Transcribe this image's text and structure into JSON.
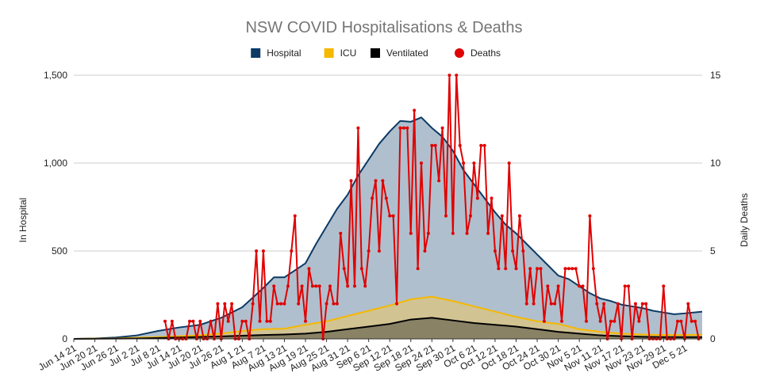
{
  "chart_data": {
    "type": "area",
    "title": "NSW COVID Hospitalisations & Deaths",
    "ylabel": "In Hospital",
    "y2label": "Daily Deaths",
    "ylim": [
      0,
      1500
    ],
    "y2lim": [
      0,
      15
    ],
    "yticks": [
      "0",
      "500",
      "1,000",
      "1,500"
    ],
    "y2ticks": [
      "0",
      "5",
      "10",
      "15"
    ],
    "xlim": [
      "2021-06-14",
      "2021-12-10"
    ],
    "xticks": [
      "Jun 14 21",
      "Jun 20 21",
      "Jun 26 21",
      "Jul 2 21",
      "Jul 8 21",
      "Jul 14 21",
      "Jul 20 21",
      "Jul 26 21",
      "Aug 1 21",
      "Aug 7 21",
      "Aug 13 21",
      "Aug 19 21",
      "Aug 25 21",
      "Aug 31 21",
      "Sep 6 21",
      "Sep 12 21",
      "Sep 18 21",
      "Sep 24 21",
      "Sep 30 21",
      "Oct 6 21",
      "Oct 12 21",
      "Oct 18 21",
      "Oct 24 21",
      "Oct 30 21",
      "Nov 5 21",
      "Nov 11 21",
      "Nov 17 21",
      "Nov 23 21",
      "Nov 29 21",
      "Dec 5 21"
    ],
    "legend_position": "top",
    "grid": true,
    "series": [
      {
        "name": "Hospital",
        "axis": "left",
        "kind": "area",
        "color": "#0b3a66",
        "fill": "#b0bfcd",
        "points": [
          [
            "2021-06-14",
            0
          ],
          [
            "2021-06-20",
            2
          ],
          [
            "2021-06-26",
            8
          ],
          [
            "2021-07-02",
            20
          ],
          [
            "2021-07-08",
            45
          ],
          [
            "2021-07-14",
            65
          ],
          [
            "2021-07-20",
            80
          ],
          [
            "2021-07-26",
            120
          ],
          [
            "2021-08-01",
            180
          ],
          [
            "2021-08-07",
            290
          ],
          [
            "2021-08-10",
            350
          ],
          [
            "2021-08-13",
            350
          ],
          [
            "2021-08-16",
            390
          ],
          [
            "2021-08-19",
            430
          ],
          [
            "2021-08-22",
            540
          ],
          [
            "2021-08-25",
            640
          ],
          [
            "2021-08-28",
            740
          ],
          [
            "2021-08-31",
            820
          ],
          [
            "2021-09-03",
            930
          ],
          [
            "2021-09-06",
            1020
          ],
          [
            "2021-09-09",
            1110
          ],
          [
            "2021-09-12",
            1180
          ],
          [
            "2021-09-15",
            1240
          ],
          [
            "2021-09-18",
            1235
          ],
          [
            "2021-09-21",
            1260
          ],
          [
            "2021-09-24",
            1200
          ],
          [
            "2021-09-27",
            1150
          ],
          [
            "2021-09-30",
            1070
          ],
          [
            "2021-10-03",
            960
          ],
          [
            "2021-10-06",
            880
          ],
          [
            "2021-10-09",
            800
          ],
          [
            "2021-10-12",
            720
          ],
          [
            "2021-10-15",
            650
          ],
          [
            "2021-10-18",
            600
          ],
          [
            "2021-10-21",
            540
          ],
          [
            "2021-10-24",
            480
          ],
          [
            "2021-10-27",
            420
          ],
          [
            "2021-10-30",
            360
          ],
          [
            "2021-11-02",
            340
          ],
          [
            "2021-11-05",
            300
          ],
          [
            "2021-11-08",
            260
          ],
          [
            "2021-11-11",
            230
          ],
          [
            "2021-11-14",
            215
          ],
          [
            "2021-11-17",
            195
          ],
          [
            "2021-11-20",
            185
          ],
          [
            "2021-11-23",
            175
          ],
          [
            "2021-11-26",
            160
          ],
          [
            "2021-11-29",
            150
          ],
          [
            "2021-12-02",
            140
          ],
          [
            "2021-12-05",
            145
          ],
          [
            "2021-12-10",
            155
          ]
        ]
      },
      {
        "name": "ICU",
        "axis": "left",
        "kind": "area",
        "color": "#f5b800",
        "fill": "#d2c393",
        "points": [
          [
            "2021-06-14",
            0
          ],
          [
            "2021-06-26",
            3
          ],
          [
            "2021-07-08",
            10
          ],
          [
            "2021-07-20",
            20
          ],
          [
            "2021-07-26",
            30
          ],
          [
            "2021-08-01",
            45
          ],
          [
            "2021-08-07",
            55
          ],
          [
            "2021-08-13",
            58
          ],
          [
            "2021-08-19",
            80
          ],
          [
            "2021-08-25",
            100
          ],
          [
            "2021-08-31",
            130
          ],
          [
            "2021-09-06",
            160
          ],
          [
            "2021-09-12",
            190
          ],
          [
            "2021-09-18",
            225
          ],
          [
            "2021-09-24",
            240
          ],
          [
            "2021-09-30",
            215
          ],
          [
            "2021-10-06",
            185
          ],
          [
            "2021-10-12",
            155
          ],
          [
            "2021-10-18",
            125
          ],
          [
            "2021-10-24",
            100
          ],
          [
            "2021-10-30",
            85
          ],
          [
            "2021-11-05",
            55
          ],
          [
            "2021-11-11",
            40
          ],
          [
            "2021-11-17",
            30
          ],
          [
            "2021-11-23",
            25
          ],
          [
            "2021-11-29",
            22
          ],
          [
            "2021-12-05",
            22
          ],
          [
            "2021-12-10",
            24
          ]
        ]
      },
      {
        "name": "Ventilated",
        "axis": "left",
        "kind": "area",
        "color": "#000000",
        "fill": "#8a8265",
        "points": [
          [
            "2021-06-14",
            0
          ],
          [
            "2021-07-02",
            2
          ],
          [
            "2021-07-14",
            8
          ],
          [
            "2021-07-26",
            14
          ],
          [
            "2021-08-07",
            22
          ],
          [
            "2021-08-13",
            25
          ],
          [
            "2021-08-19",
            30
          ],
          [
            "2021-08-25",
            40
          ],
          [
            "2021-08-31",
            55
          ],
          [
            "2021-09-06",
            70
          ],
          [
            "2021-09-12",
            85
          ],
          [
            "2021-09-18",
            110
          ],
          [
            "2021-09-24",
            120
          ],
          [
            "2021-09-30",
            105
          ],
          [
            "2021-10-06",
            90
          ],
          [
            "2021-10-12",
            80
          ],
          [
            "2021-10-18",
            70
          ],
          [
            "2021-10-24",
            55
          ],
          [
            "2021-10-30",
            40
          ],
          [
            "2021-11-05",
            30
          ],
          [
            "2021-11-11",
            20
          ],
          [
            "2021-11-17",
            15
          ],
          [
            "2021-11-23",
            12
          ],
          [
            "2021-11-29",
            10
          ],
          [
            "2021-12-05",
            10
          ],
          [
            "2021-12-10",
            10
          ]
        ]
      },
      {
        "name": "Deaths",
        "axis": "right",
        "kind": "line",
        "color": "#e00000",
        "points": [
          [
            "2021-07-10",
            1
          ],
          [
            "2021-07-11",
            0
          ],
          [
            "2021-07-12",
            1
          ],
          [
            "2021-07-13",
            0
          ],
          [
            "2021-07-14",
            0
          ],
          [
            "2021-07-15",
            0
          ],
          [
            "2021-07-16",
            0
          ],
          [
            "2021-07-17",
            1
          ],
          [
            "2021-07-18",
            1
          ],
          [
            "2021-07-19",
            0
          ],
          [
            "2021-07-20",
            1
          ],
          [
            "2021-07-21",
            0
          ],
          [
            "2021-07-22",
            0
          ],
          [
            "2021-07-23",
            1
          ],
          [
            "2021-07-24",
            0
          ],
          [
            "2021-07-25",
            2
          ],
          [
            "2021-07-26",
            0
          ],
          [
            "2021-07-27",
            2
          ],
          [
            "2021-07-28",
            1
          ],
          [
            "2021-07-29",
            2
          ],
          [
            "2021-07-30",
            0
          ],
          [
            "2021-07-31",
            0
          ],
          [
            "2021-08-01",
            1
          ],
          [
            "2021-08-02",
            1
          ],
          [
            "2021-08-03",
            0
          ],
          [
            "2021-08-04",
            2
          ],
          [
            "2021-08-05",
            5
          ],
          [
            "2021-08-06",
            1
          ],
          [
            "2021-08-07",
            5
          ],
          [
            "2021-08-08",
            1
          ],
          [
            "2021-08-09",
            1
          ],
          [
            "2021-08-10",
            3
          ],
          [
            "2021-08-11",
            2
          ],
          [
            "2021-08-12",
            2
          ],
          [
            "2021-08-13",
            2
          ],
          [
            "2021-08-14",
            3
          ],
          [
            "2021-08-15",
            5
          ],
          [
            "2021-08-16",
            7
          ],
          [
            "2021-08-17",
            2
          ],
          [
            "2021-08-18",
            3
          ],
          [
            "2021-08-19",
            1
          ],
          [
            "2021-08-20",
            4
          ],
          [
            "2021-08-21",
            3
          ],
          [
            "2021-08-22",
            3
          ],
          [
            "2021-08-23",
            3
          ],
          [
            "2021-08-24",
            0
          ],
          [
            "2021-08-25",
            2
          ],
          [
            "2021-08-26",
            3
          ],
          [
            "2021-08-27",
            2
          ],
          [
            "2021-08-28",
            2
          ],
          [
            "2021-08-29",
            6
          ],
          [
            "2021-08-30",
            4
          ],
          [
            "2021-08-31",
            3
          ],
          [
            "2021-09-01",
            9
          ],
          [
            "2021-09-02",
            3
          ],
          [
            "2021-09-03",
            12
          ],
          [
            "2021-09-04",
            4
          ],
          [
            "2021-09-05",
            3
          ],
          [
            "2021-09-06",
            5
          ],
          [
            "2021-09-07",
            8
          ],
          [
            "2021-09-08",
            9
          ],
          [
            "2021-09-09",
            5
          ],
          [
            "2021-09-10",
            9
          ],
          [
            "2021-09-11",
            8
          ],
          [
            "2021-09-12",
            7
          ],
          [
            "2021-09-13",
            7
          ],
          [
            "2021-09-14",
            2
          ],
          [
            "2021-09-15",
            12
          ],
          [
            "2021-09-16",
            12
          ],
          [
            "2021-09-17",
            12
          ],
          [
            "2021-09-18",
            6
          ],
          [
            "2021-09-19",
            13
          ],
          [
            "2021-09-20",
            4
          ],
          [
            "2021-09-21",
            10
          ],
          [
            "2021-09-22",
            5
          ],
          [
            "2021-09-23",
            6
          ],
          [
            "2021-09-24",
            11
          ],
          [
            "2021-09-25",
            11
          ],
          [
            "2021-09-26",
            9
          ],
          [
            "2021-09-27",
            12
          ],
          [
            "2021-09-28",
            7
          ],
          [
            "2021-09-29",
            15
          ],
          [
            "2021-09-30",
            6
          ],
          [
            "2021-10-01",
            15
          ],
          [
            "2021-10-02",
            11
          ],
          [
            "2021-10-03",
            10
          ],
          [
            "2021-10-04",
            6
          ],
          [
            "2021-10-05",
            7
          ],
          [
            "2021-10-06",
            10
          ],
          [
            "2021-10-07",
            8
          ],
          [
            "2021-10-08",
            11
          ],
          [
            "2021-10-09",
            11
          ],
          [
            "2021-10-10",
            6
          ],
          [
            "2021-10-11",
            8
          ],
          [
            "2021-10-12",
            5
          ],
          [
            "2021-10-13",
            4
          ],
          [
            "2021-10-14",
            7
          ],
          [
            "2021-10-15",
            4
          ],
          [
            "2021-10-16",
            10
          ],
          [
            "2021-10-17",
            5
          ],
          [
            "2021-10-18",
            4
          ],
          [
            "2021-10-19",
            7
          ],
          [
            "2021-10-20",
            5
          ],
          [
            "2021-10-21",
            2
          ],
          [
            "2021-10-22",
            4
          ],
          [
            "2021-10-23",
            2
          ],
          [
            "2021-10-24",
            4
          ],
          [
            "2021-10-25",
            4
          ],
          [
            "2021-10-26",
            1
          ],
          [
            "2021-10-27",
            3
          ],
          [
            "2021-10-28",
            2
          ],
          [
            "2021-10-29",
            2
          ],
          [
            "2021-10-30",
            3
          ],
          [
            "2021-10-31",
            1
          ],
          [
            "2021-11-01",
            4
          ],
          [
            "2021-11-02",
            4
          ],
          [
            "2021-11-03",
            4
          ],
          [
            "2021-11-04",
            4
          ],
          [
            "2021-11-05",
            3
          ],
          [
            "2021-11-06",
            3
          ],
          [
            "2021-11-07",
            1
          ],
          [
            "2021-11-08",
            7
          ],
          [
            "2021-11-09",
            4
          ],
          [
            "2021-11-10",
            2
          ],
          [
            "2021-11-11",
            1
          ],
          [
            "2021-11-12",
            2
          ],
          [
            "2021-11-13",
            0
          ],
          [
            "2021-11-14",
            1
          ],
          [
            "2021-11-15",
            1
          ],
          [
            "2021-11-16",
            2
          ],
          [
            "2021-11-17",
            0
          ],
          [
            "2021-11-18",
            3
          ],
          [
            "2021-11-19",
            3
          ],
          [
            "2021-11-20",
            0
          ],
          [
            "2021-11-21",
            2
          ],
          [
            "2021-11-22",
            1
          ],
          [
            "2021-11-23",
            2
          ],
          [
            "2021-11-24",
            2
          ],
          [
            "2021-11-25",
            0
          ],
          [
            "2021-11-26",
            0
          ],
          [
            "2021-11-27",
            0
          ],
          [
            "2021-11-28",
            0
          ],
          [
            "2021-11-29",
            3
          ],
          [
            "2021-11-30",
            0
          ],
          [
            "2021-12-01",
            0
          ],
          [
            "2021-12-02",
            0
          ],
          [
            "2021-12-03",
            1
          ],
          [
            "2021-12-04",
            1
          ],
          [
            "2021-12-05",
            0
          ],
          [
            "2021-12-06",
            2
          ],
          [
            "2021-12-07",
            1
          ],
          [
            "2021-12-08",
            1
          ],
          [
            "2021-12-09",
            0
          ]
        ]
      }
    ]
  }
}
